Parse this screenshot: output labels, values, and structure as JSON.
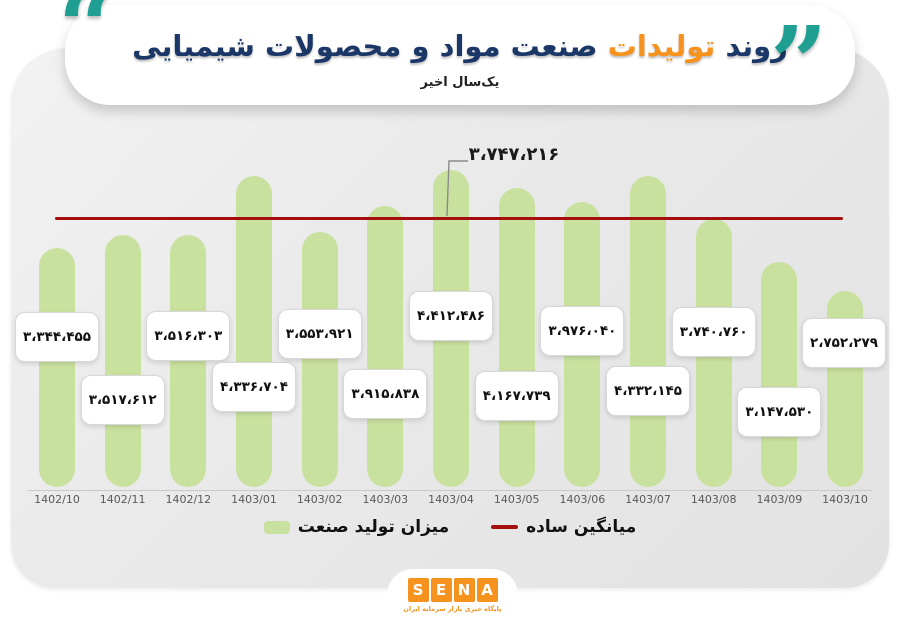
{
  "header": {
    "title_word1": "روند",
    "title_highlight": "تولیدات",
    "title_rest": "صنعت مواد و محصولات شیمیایی",
    "subtitle": "یک‌سال اخیر",
    "quote_right_glyph": "”",
    "quote_left_glyph": "“"
  },
  "chart_data": {
    "type": "bar",
    "title": "روند تولیدات صنعت مواد و محصولات شیمیایی",
    "subtitle": "یک‌سال اخیر",
    "categories": [
      "1402/10",
      "1402/11",
      "1402/12",
      "1403/01",
      "1403/02",
      "1403/03",
      "1403/04",
      "1403/05",
      "1403/06",
      "1403/07",
      "1403/08",
      "1403/09",
      "1403/10"
    ],
    "values": [
      3344455,
      3517612,
      3516303,
      4336704,
      3553921,
      3915838,
      4412486,
      4167739,
      3976040,
      4332145,
      3740760,
      3147530,
      2752279
    ],
    "average": 3747216,
    "average_annotation_fa": "۳،۷۴۷،۲۱۶",
    "value_labels_fa": [
      "۳،۳۴۴،۴۵۵",
      "۳،۵۱۷،۶۱۲",
      "۳،۵۱۶،۳۰۳",
      "۴،۳۳۶،۷۰۴",
      "۳،۵۵۳،۹۲۱",
      "۳،۹۱۵،۸۳۸",
      "۴،۴۱۲،۴۸۶",
      "۴،۱۶۷،۷۳۹",
      "۳،۹۷۶،۰۴۰",
      "۴،۳۳۲،۱۴۵",
      "۳،۷۴۰،۷۶۰",
      "۳،۱۴۷،۵۳۰",
      "۲،۷۵۲،۲۷۹"
    ],
    "bar_color": "#c9e19e",
    "average_line_color": "#a50e0e",
    "ylim": [
      0,
      4600000
    ],
    "grid": false,
    "legend_position": "bottom",
    "legend": [
      {
        "label": "میزان تولید صنعت",
        "swatch": "bar",
        "color": "#c9e19e"
      },
      {
        "label": "میانگین ساده",
        "swatch": "line",
        "color": "#a50e0e"
      }
    ]
  },
  "footer": {
    "logo_letters": [
      "S",
      "E",
      "N",
      "A"
    ],
    "logo_subtext": "پایگاه خبری بازار سرمایه ایران"
  },
  "colors": {
    "title_navy": "#1b3767",
    "title_orange": "#f6921e",
    "quote_teal": "#1f9e92",
    "bar_green": "#c9e19e",
    "avg_red": "#a50e0e"
  }
}
